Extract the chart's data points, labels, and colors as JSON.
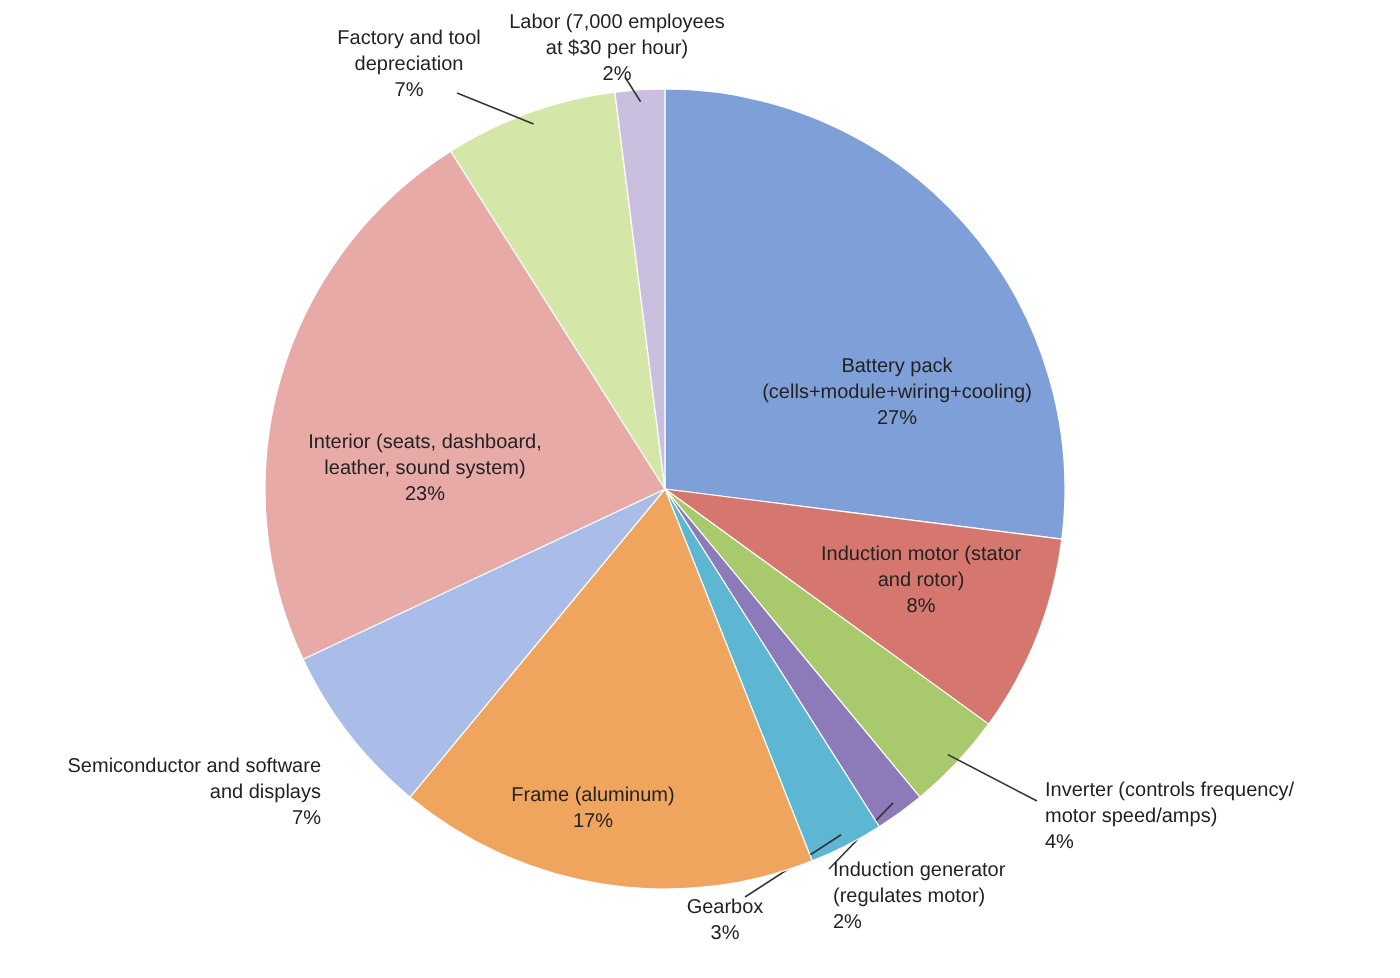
{
  "chart_data": {
    "type": "pie",
    "categories": [
      "Battery pack (cells+module+wiring+cooling)",
      "Induction motor (stator and rotor)",
      "Inverter (controls frequency/ motor speed/amps)",
      "Induction generator (regulates motor)",
      "Gearbox",
      "Frame (aluminum)",
      "Semiconductor and software and displays",
      "Interior (seats, dashboard, leather, sound system)",
      "Factory and tool depreciation",
      "Labor (7,000 employees at $30 per hour)"
    ],
    "values": [
      27,
      8,
      4,
      2,
      3,
      17,
      7,
      23,
      7,
      2
    ],
    "value_labels": [
      "27%",
      "8%",
      "4%",
      "2%",
      "3%",
      "17%",
      "7%",
      "23%",
      "7%",
      "2%"
    ],
    "colors": [
      "#7f9fd8",
      "#d6776f",
      "#a9c96d",
      "#8c7bb8",
      "#5db6d2",
      "#efa55e",
      "#a9bde8",
      "#e7aaa7",
      "#d4e6a8",
      "#cbbfe0"
    ],
    "legend": false
  }
}
